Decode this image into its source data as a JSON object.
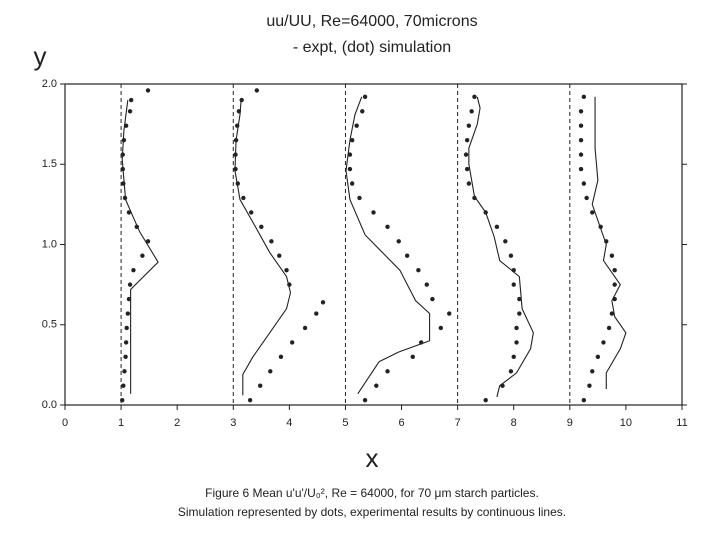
{
  "chart_data": {
    "type": "line",
    "title": "uu/UU, Re=64000, 70microns",
    "subtitle": "- expt, (dot) simulation",
    "y_label": "y",
    "x_label": "x",
    "caption": [
      "Figure 6  Mean u'u'/U₀², Re = 64000, for 70 μm starch particles.",
      "Simulation represented by dots, experimental results by continuous lines."
    ],
    "xlim": [
      0,
      11
    ],
    "ylim": [
      0,
      2
    ],
    "xticks": [
      0,
      1,
      2,
      3,
      4,
      5,
      6,
      7,
      8,
      9,
      10,
      11
    ],
    "yticks": [
      {
        "value": 0,
        "label": "0.0"
      },
      {
        "value": 0.5,
        "label": "0.5"
      },
      {
        "value": 1,
        "label": "1.0"
      },
      {
        "value": 1.5,
        "label": "1.5"
      },
      {
        "value": 2,
        "label": "2.0"
      }
    ],
    "reference_x": [
      1,
      3,
      5,
      7,
      9
    ],
    "color": "#222222",
    "series": [
      {
        "type": "line",
        "x": [
          1.17,
          1.17,
          1.66,
          1.33,
          1.08,
          1.02,
          1.05,
          1.12
        ],
        "values": [
          0.07,
          0.72,
          0.89,
          1.08,
          1.28,
          1.53,
          1.71,
          1.9
        ]
      },
      {
        "type": "scatter",
        "x": [
          1.02,
          1.04,
          1.06,
          1.08,
          1.09,
          1.1,
          1.12,
          1.14,
          1.16,
          1.22,
          1.38,
          1.48,
          1.28,
          1.14,
          1.07,
          1.04,
          1.03,
          1.03,
          1.05,
          1.09,
          1.16,
          1.18,
          1.48
        ],
        "values": [
          0.03,
          0.12,
          0.21,
          0.3,
          0.39,
          0.48,
          0.57,
          0.66,
          0.75,
          0.84,
          0.93,
          1.02,
          1.11,
          1.2,
          1.29,
          1.38,
          1.47,
          1.56,
          1.65,
          1.74,
          1.83,
          1.9,
          1.96
        ]
      },
      {
        "type": "line",
        "x": [
          3.17,
          3.17,
          3.35,
          3.65,
          3.95,
          4.02,
          3.95,
          3.65,
          3.38,
          3.12,
          3.03,
          3.05,
          3.12,
          3.14
        ],
        "values": [
          0.06,
          0.19,
          0.3,
          0.45,
          0.6,
          0.7,
          0.8,
          0.95,
          1.12,
          1.28,
          1.46,
          1.65,
          1.81,
          1.9
        ]
      },
      {
        "type": "scatter",
        "x": [
          3.3,
          3.48,
          3.66,
          3.85,
          4.05,
          4.28,
          4.48,
          4.6,
          4.0,
          3.95,
          3.82,
          3.68,
          3.5,
          3.32,
          3.18,
          3.08,
          3.04,
          3.04,
          3.05,
          3.07,
          3.1,
          3.15,
          3.42
        ],
        "values": [
          0.03,
          0.12,
          0.21,
          0.3,
          0.39,
          0.48,
          0.57,
          0.64,
          0.75,
          0.84,
          0.93,
          1.02,
          1.11,
          1.2,
          1.29,
          1.38,
          1.47,
          1.56,
          1.65,
          1.74,
          1.83,
          1.9,
          1.96
        ]
      },
      {
        "type": "line",
        "x": [
          5.22,
          5.6,
          5.95,
          6.5,
          6.5,
          6.25,
          5.97,
          5.35,
          5.08,
          5.01,
          5.08,
          5.17,
          5.29
        ],
        "values": [
          0.07,
          0.27,
          0.33,
          0.4,
          0.57,
          0.65,
          0.84,
          1.06,
          1.28,
          1.46,
          1.65,
          1.81,
          1.92
        ]
      },
      {
        "type": "scatter",
        "x": [
          5.35,
          5.55,
          5.75,
          6.2,
          6.35,
          6.7,
          6.85,
          6.55,
          6.45,
          6.3,
          6.1,
          5.95,
          5.75,
          5.5,
          5.25,
          5.12,
          5.08,
          5.08,
          5.12,
          5.2,
          5.3,
          5.35
        ],
        "values": [
          0.03,
          0.12,
          0.21,
          0.3,
          0.39,
          0.48,
          0.57,
          0.66,
          0.75,
          0.84,
          0.93,
          1.02,
          1.11,
          1.2,
          1.29,
          1.38,
          1.47,
          1.56,
          1.65,
          1.74,
          1.83,
          1.92
        ]
      },
      {
        "type": "line",
        "x": [
          7.7,
          7.75,
          8.05,
          8.3,
          8.35,
          8.15,
          8.1,
          7.75,
          7.65,
          7.5,
          7.3,
          7.2,
          7.2,
          7.35,
          7.4,
          7.35
        ],
        "values": [
          0.05,
          0.12,
          0.2,
          0.35,
          0.45,
          0.6,
          0.8,
          0.9,
          1.05,
          1.2,
          1.3,
          1.5,
          1.6,
          1.75,
          1.85,
          1.92
        ]
      },
      {
        "type": "scatter",
        "x": [
          7.5,
          7.8,
          7.95,
          8.0,
          8.05,
          8.05,
          8.1,
          8.1,
          8.0,
          8.0,
          7.95,
          7.85,
          7.7,
          7.5,
          7.3,
          7.2,
          7.17,
          7.15,
          7.17,
          7.2,
          7.25,
          7.3
        ],
        "values": [
          0.03,
          0.12,
          0.21,
          0.3,
          0.39,
          0.48,
          0.57,
          0.66,
          0.75,
          0.84,
          0.93,
          1.02,
          1.11,
          1.2,
          1.29,
          1.38,
          1.47,
          1.56,
          1.65,
          1.74,
          1.83,
          1.92
        ]
      },
      {
        "type": "line",
        "x": [
          9.65,
          9.65,
          9.9,
          10.0,
          9.8,
          9.75,
          9.9,
          9.6,
          9.65,
          9.55,
          9.4,
          9.5,
          9.45,
          9.45
        ],
        "values": [
          0.1,
          0.2,
          0.35,
          0.45,
          0.55,
          0.65,
          0.75,
          0.9,
          1.0,
          1.1,
          1.25,
          1.4,
          1.6,
          1.92
        ]
      },
      {
        "type": "scatter",
        "x": [
          9.25,
          9.35,
          9.4,
          9.5,
          9.6,
          9.7,
          9.75,
          9.8,
          9.8,
          9.8,
          9.75,
          9.65,
          9.55,
          9.4,
          9.3,
          9.25,
          9.2,
          9.2,
          9.2,
          9.2,
          9.2,
          9.25
        ],
        "values": [
          0.03,
          0.12,
          0.21,
          0.3,
          0.39,
          0.48,
          0.57,
          0.66,
          0.75,
          0.84,
          0.93,
          1.02,
          1.11,
          1.2,
          1.29,
          1.38,
          1.47,
          1.56,
          1.65,
          1.74,
          1.83,
          1.92
        ]
      }
    ]
  }
}
